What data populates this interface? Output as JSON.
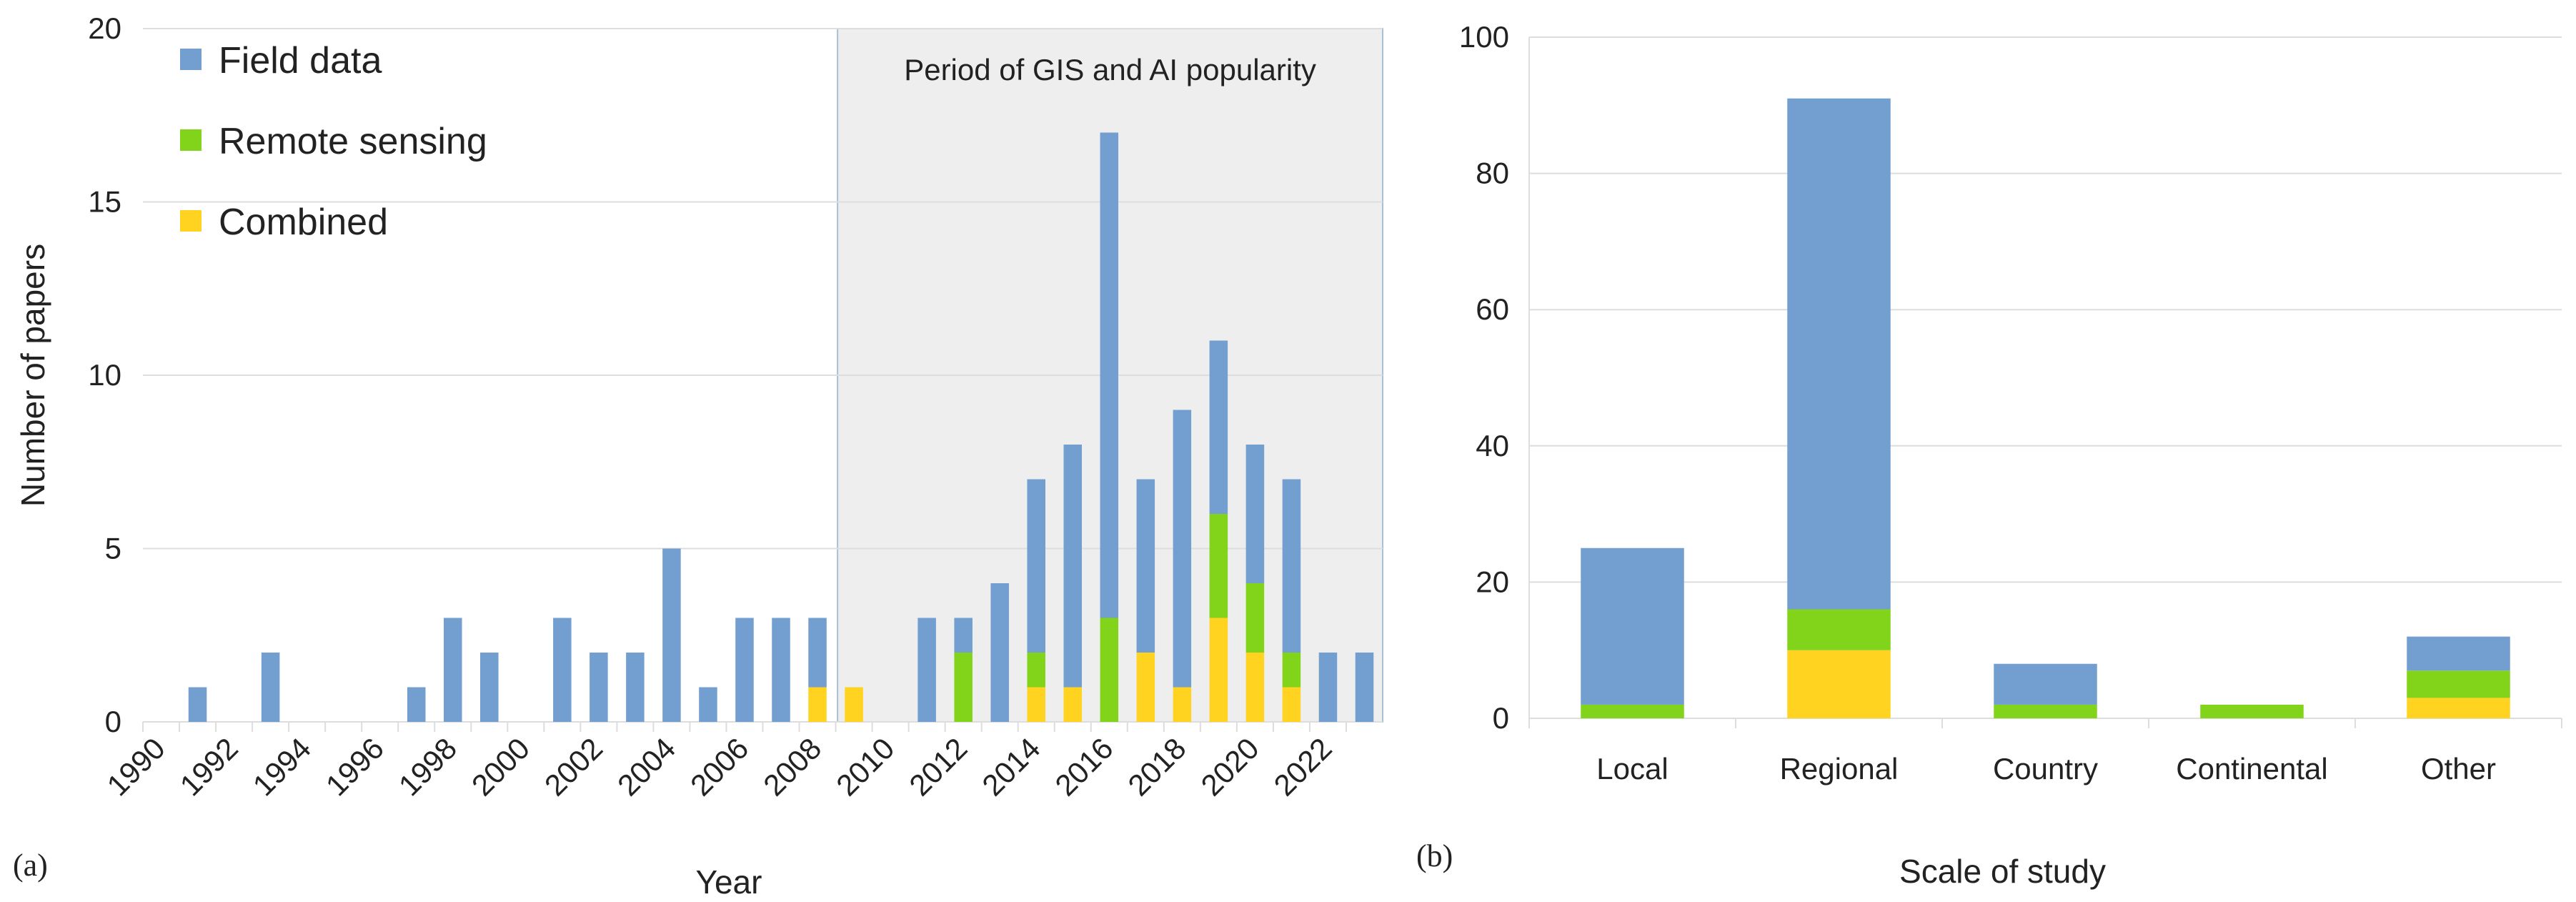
{
  "colors": {
    "field": "#729fcf",
    "remote": "#81d41a",
    "combined": "#ffd320",
    "grid": "#dddddd",
    "highlight_fill": "#eeeeee",
    "highlight_stroke": "#a9bfd6"
  },
  "chart_data": [
    {
      "type": "bar",
      "stacked": true,
      "panel_label": "(a)",
      "xlabel": "Year",
      "ylabel": "Number of papers",
      "ylim": [
        0,
        20
      ],
      "yticks": [
        0,
        5,
        10,
        15,
        20
      ],
      "x_tick_labels": [
        "1990",
        "1992",
        "1994",
        "1996",
        "1998",
        "2000",
        "2002",
        "2004",
        "2006",
        "2008",
        "2010",
        "2012",
        "2014",
        "2016",
        "2018",
        "2020",
        "2022"
      ],
      "categories": [
        "1990",
        "1991",
        "1992",
        "1993",
        "1994",
        "1995",
        "1996",
        "1997",
        "1998",
        "1999",
        "2000",
        "2001",
        "2002",
        "2003",
        "2004",
        "2005",
        "2006",
        "2007",
        "2008",
        "2009",
        "2010",
        "2011",
        "2012",
        "2013",
        "2014",
        "2015",
        "2016",
        "2017",
        "2018",
        "2019",
        "2020",
        "2021",
        "2022",
        "2023"
      ],
      "legend": [
        "Field data",
        "Remote sensing",
        "Combined"
      ],
      "legend_position": "top-left",
      "highlight": {
        "label": "Period of GIS and AI popularity",
        "from": "2009",
        "to": "2023"
      },
      "series": [
        {
          "name": "Combined",
          "color_key": "combined",
          "values": [
            0,
            0,
            0,
            0,
            0,
            0,
            0,
            0,
            0,
            0,
            0,
            0,
            0,
            0,
            0,
            0,
            0,
            0,
            1,
            1,
            0,
            0,
            0,
            0,
            1,
            1,
            0,
            2,
            1,
            3,
            2,
            1,
            0,
            0
          ]
        },
        {
          "name": "Remote sensing",
          "color_key": "remote",
          "values": [
            0,
            0,
            0,
            0,
            0,
            0,
            0,
            0,
            0,
            0,
            0,
            0,
            0,
            0,
            0,
            0,
            0,
            0,
            0,
            0,
            0,
            0,
            2,
            0,
            1,
            0,
            3,
            0,
            0,
            3,
            2,
            1,
            0,
            0
          ]
        },
        {
          "name": "Field data",
          "color_key": "field",
          "values": [
            0,
            1,
            0,
            2,
            0,
            0,
            0,
            1,
            3,
            2,
            0,
            3,
            2,
            2,
            5,
            1,
            3,
            3,
            2,
            0,
            0,
            3,
            1,
            4,
            5,
            7,
            14,
            5,
            8,
            5,
            4,
            5,
            2,
            2
          ]
        }
      ]
    },
    {
      "type": "bar",
      "stacked": true,
      "panel_label": "(b)",
      "xlabel": "Scale of study",
      "ylabel": "",
      "ylim": [
        0,
        100
      ],
      "yticks": [
        0,
        20,
        40,
        60,
        80,
        100
      ],
      "categories": [
        "Local",
        "Regional",
        "Country",
        "Continental",
        "Other"
      ],
      "series": [
        {
          "name": "Combined",
          "color_key": "combined",
          "values": [
            0,
            10,
            0,
            0,
            3
          ]
        },
        {
          "name": "Remote sensing",
          "color_key": "remote",
          "values": [
            2,
            6,
            2,
            2,
            4
          ]
        },
        {
          "name": "Field data",
          "color_key": "field",
          "values": [
            23,
            75,
            6,
            0,
            5
          ]
        }
      ]
    }
  ]
}
